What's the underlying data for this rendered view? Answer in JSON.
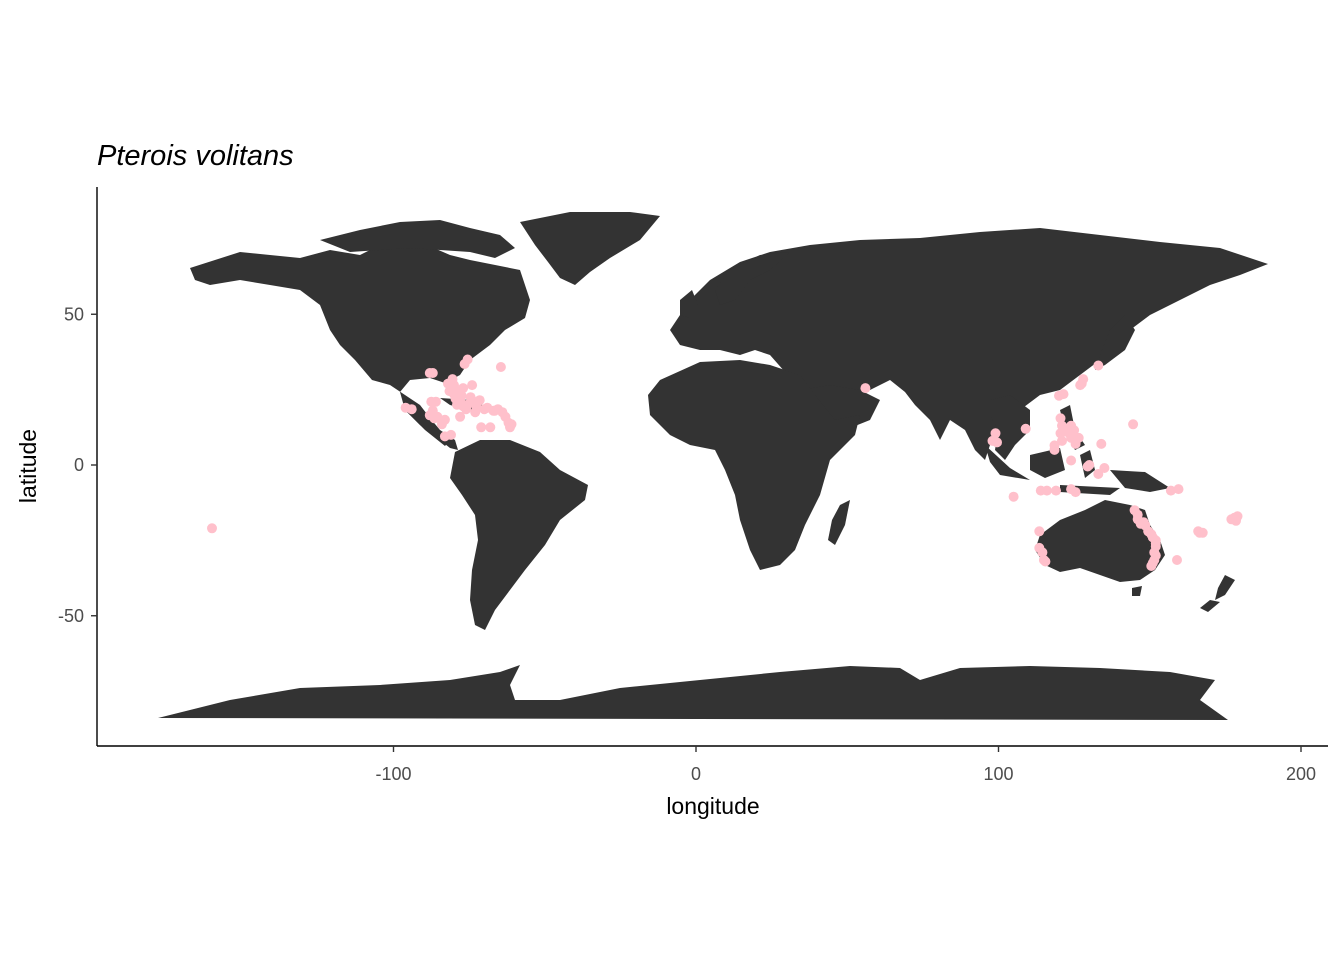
{
  "chart_data": {
    "type": "scatter",
    "title": "Pterois volitans",
    "xlabel": "longitude",
    "ylabel": "latitude",
    "xlim": [
      -200,
      205
    ],
    "ylim": [
      -93,
      92
    ],
    "x_ticks": [
      -100,
      0,
      100,
      200
    ],
    "x_tick_labels": [
      "-100",
      "0",
      "100",
      "200"
    ],
    "y_ticks": [
      -50,
      0,
      50
    ],
    "y_tick_labels": [
      "-50",
      "0",
      "50"
    ],
    "grid": false,
    "legend": "none",
    "basemap": "world land polygons",
    "land_color": "#333333",
    "point_color": "#FFC0CB",
    "series": [
      {
        "points": [
          [
            -160,
            -21
          ],
          [
            -96,
            19
          ],
          [
            -94,
            18.5
          ],
          [
            -88,
            30.5
          ],
          [
            -87,
            30.5
          ],
          [
            -87.5,
            21
          ],
          [
            -88,
            16.5
          ],
          [
            -87,
            18
          ],
          [
            -86,
            21
          ],
          [
            -86.5,
            15.5
          ],
          [
            -85.5,
            16
          ],
          [
            -84,
            13.5
          ],
          [
            -83,
            9.5
          ],
          [
            -81,
            10
          ],
          [
            -81.5,
            24.5
          ],
          [
            -82,
            27
          ],
          [
            -80.5,
            28.5
          ],
          [
            -80,
            25
          ],
          [
            -80,
            26.5
          ],
          [
            -79.5,
            22
          ],
          [
            -79,
            20
          ],
          [
            -78,
            21.5
          ],
          [
            -78,
            24
          ],
          [
            -77.5,
            23
          ],
          [
            -77,
            25.5
          ],
          [
            -76.5,
            33.5
          ],
          [
            -77,
            19.5
          ],
          [
            -76,
            18.5
          ],
          [
            -75.5,
            35
          ],
          [
            -75.5,
            20
          ],
          [
            -74.5,
            22.5
          ],
          [
            -74,
            26.5
          ],
          [
            -73.5,
            21
          ],
          [
            -72.5,
            19
          ],
          [
            -71.5,
            21.5
          ],
          [
            -70,
            18.5
          ],
          [
            -69,
            19
          ],
          [
            -68,
            12.5
          ],
          [
            -67,
            18
          ],
          [
            -66.5,
            18
          ],
          [
            -65.5,
            18.5
          ],
          [
            -64,
            17.5
          ],
          [
            -63,
            16
          ],
          [
            -62,
            14
          ],
          [
            -61.5,
            12.5
          ],
          [
            -61,
            13.5
          ],
          [
            -64.5,
            32.5
          ],
          [
            -73,
            17.5
          ],
          [
            -71,
            12.5
          ],
          [
            -78,
            16
          ],
          [
            -83,
            15
          ],
          [
            -80,
            23.5
          ],
          [
            56,
            25.5
          ],
          [
            98,
            8
          ],
          [
            99,
            10.5
          ],
          [
            99.5,
            7.5
          ],
          [
            105,
            -10.5
          ],
          [
            109,
            12
          ],
          [
            113.5,
            -22
          ],
          [
            113.5,
            -27.5
          ],
          [
            114,
            -8.5
          ],
          [
            114.5,
            -29
          ],
          [
            115,
            -31.5
          ],
          [
            115.5,
            -32
          ],
          [
            116,
            -8.5
          ],
          [
            118.5,
            6.5
          ],
          [
            118.5,
            5
          ],
          [
            119,
            -8.5
          ],
          [
            120,
            23
          ],
          [
            120.5,
            15.5
          ],
          [
            120.5,
            10.5
          ],
          [
            121,
            13
          ],
          [
            121,
            8
          ],
          [
            121.5,
            23.5
          ],
          [
            122,
            12
          ],
          [
            122.5,
            11
          ],
          [
            123.5,
            10.5
          ],
          [
            124,
            13
          ],
          [
            124,
            9
          ],
          [
            124,
            -8
          ],
          [
            124,
            1.5
          ],
          [
            125,
            11.5
          ],
          [
            125.5,
            7
          ],
          [
            125.5,
            -9
          ],
          [
            126.5,
            9
          ],
          [
            127,
            26.5
          ],
          [
            127.5,
            27
          ],
          [
            128,
            28.5
          ],
          [
            129.5,
            -0.5
          ],
          [
            130,
            0
          ],
          [
            133,
            33
          ],
          [
            133,
            -3
          ],
          [
            134,
            7
          ],
          [
            135,
            -1
          ],
          [
            144.5,
            13.5
          ],
          [
            145,
            -15
          ],
          [
            146,
            -16.5
          ],
          [
            146,
            -18
          ],
          [
            147,
            -19.5
          ],
          [
            148,
            -19
          ],
          [
            148.5,
            -20
          ],
          [
            149.5,
            -22
          ],
          [
            150.5,
            -23
          ],
          [
            151,
            -24
          ],
          [
            152,
            -25
          ],
          [
            152,
            -26
          ],
          [
            152,
            -27
          ],
          [
            151.5,
            -29
          ],
          [
            152,
            -30
          ],
          [
            151.5,
            -31.5
          ],
          [
            151,
            -32.5
          ],
          [
            150.5,
            -33.5
          ],
          [
            159,
            -31.5
          ],
          [
            159.5,
            -8
          ],
          [
            166,
            -22
          ],
          [
            166.5,
            -22.5
          ],
          [
            167.5,
            -22.5
          ],
          [
            177,
            -18
          ],
          [
            178,
            -17.5
          ],
          [
            179,
            -17
          ],
          [
            178.5,
            -18.5
          ],
          [
            157,
            -8.5
          ]
        ]
      }
    ]
  }
}
